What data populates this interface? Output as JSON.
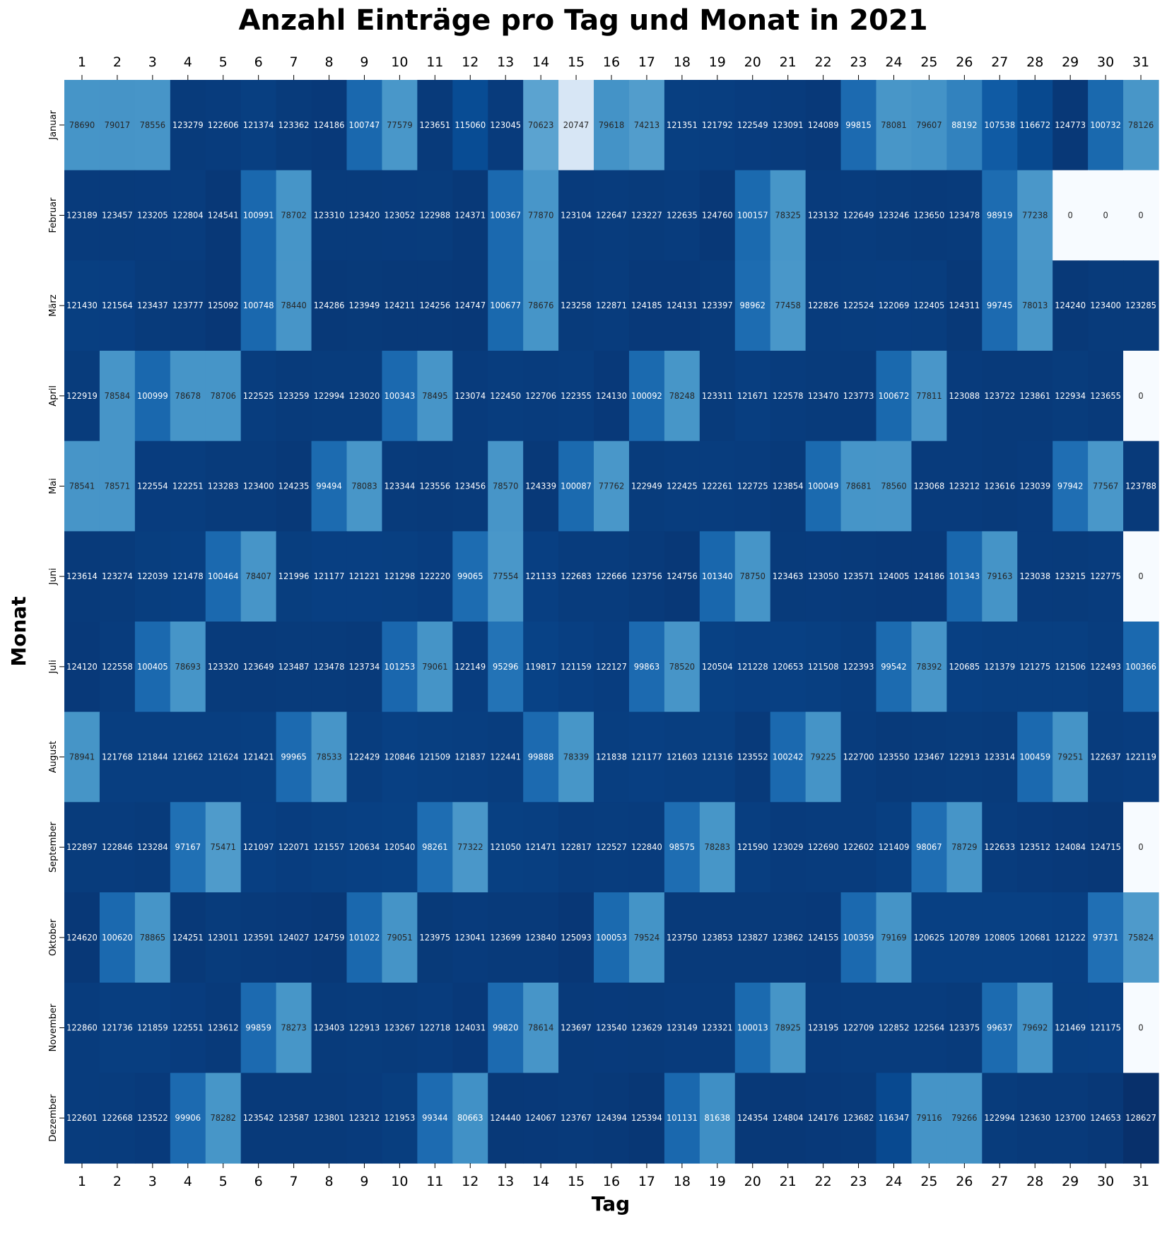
{
  "chart_data": {
    "type": "heatmap",
    "title": "Anzahl Einträge pro Tag und Monat in 2021",
    "xlabel": "Tag",
    "ylabel": "Monat",
    "colormap": "Blues",
    "value_range": [
      0,
      128627
    ],
    "x_ticks_top": true,
    "x_ticks_bottom": true,
    "x": [
      "1",
      "2",
      "3",
      "4",
      "5",
      "6",
      "7",
      "8",
      "9",
      "10",
      "11",
      "12",
      "13",
      "14",
      "15",
      "16",
      "17",
      "18",
      "19",
      "20",
      "21",
      "22",
      "23",
      "24",
      "25",
      "26",
      "27",
      "28",
      "29",
      "30",
      "31"
    ],
    "y": [
      "Januar",
      "Februar",
      "März",
      "April",
      "Mai",
      "Juni",
      "Juli",
      "August",
      "September",
      "Oktober",
      "November",
      "Dezember"
    ],
    "values": [
      [
        78690,
        79017,
        78556,
        123279,
        122606,
        121374,
        123362,
        124186,
        100747,
        77579,
        123651,
        115060,
        123045,
        70623,
        20747,
        79618,
        74213,
        121351,
        121792,
        122549,
        123091,
        124089,
        99815,
        78081,
        79607,
        88192,
        107538,
        116672,
        124773,
        100732,
        78126
      ],
      [
        123189,
        123457,
        123205,
        122804,
        124541,
        100991,
        78702,
        123310,
        123420,
        123052,
        122988,
        124371,
        100367,
        77870,
        123104,
        122647,
        123227,
        122635,
        124760,
        100157,
        78325,
        123132,
        122649,
        123246,
        123650,
        123478,
        98919,
        77238,
        0,
        0,
        0
      ],
      [
        121430,
        121564,
        123437,
        123777,
        125092,
        100748,
        78440,
        124286,
        123949,
        124211,
        124256,
        124747,
        100677,
        78676,
        123258,
        122871,
        124185,
        124131,
        123397,
        98962,
        77458,
        122826,
        122524,
        122069,
        122405,
        124311,
        99745,
        78013,
        124240,
        123400,
        123285
      ],
      [
        122919,
        78584,
        100999,
        78678,
        78706,
        122525,
        123259,
        122994,
        123020,
        100343,
        78495,
        123074,
        122450,
        122706,
        122355,
        124130,
        100092,
        78248,
        123311,
        121671,
        122578,
        123470,
        123773,
        100672,
        77811,
        123088,
        123722,
        123861,
        122934,
        123655,
        0
      ],
      [
        78541,
        78571,
        122554,
        122251,
        123283,
        123400,
        124235,
        99494,
        78083,
        123344,
        123556,
        123456,
        78570,
        124339,
        100087,
        77762,
        122949,
        122425,
        122261,
        122725,
        123854,
        100049,
        78681,
        78560,
        123068,
        123212,
        123616,
        123039,
        97942,
        77567,
        123788
      ],
      [
        123614,
        123274,
        122039,
        121478,
        100464,
        78407,
        121996,
        121177,
        121221,
        121298,
        122220,
        99065,
        77554,
        121133,
        122683,
        122666,
        123756,
        124756,
        101340,
        78750,
        123463,
        123050,
        123571,
        124005,
        124186,
        101343,
        79163,
        123038,
        123215,
        122775,
        0
      ],
      [
        124120,
        122558,
        100405,
        78693,
        123320,
        123649,
        123487,
        123478,
        123734,
        101253,
        79061,
        122149,
        95296,
        119817,
        121159,
        122127,
        99863,
        78520,
        120504,
        121228,
        120653,
        121508,
        122393,
        99542,
        78392,
        120685,
        121379,
        121275,
        121506,
        122493,
        100366
      ],
      [
        78941,
        121768,
        121844,
        121662,
        121624,
        121421,
        99965,
        78533,
        122429,
        120846,
        121509,
        121837,
        122441,
        99888,
        78339,
        121838,
        121177,
        121603,
        121316,
        123552,
        100242,
        79225,
        122700,
        123550,
        123467,
        122913,
        123314,
        100459,
        79251,
        122637,
        122119
      ],
      [
        122897,
        122846,
        123284,
        97167,
        75471,
        121097,
        122071,
        121557,
        120634,
        120540,
        98261,
        77322,
        121050,
        121471,
        122817,
        122527,
        122840,
        98575,
        78283,
        121590,
        123029,
        122690,
        122602,
        121409,
        98067,
        78729,
        122633,
        123512,
        124084,
        124715,
        0
      ],
      [
        124620,
        100620,
        78865,
        124251,
        123011,
        123591,
        124027,
        124759,
        101022,
        79051,
        123975,
        123041,
        123699,
        123840,
        125093,
        100053,
        79524,
        123750,
        123853,
        123827,
        123862,
        124155,
        100359,
        79169,
        120625,
        120789,
        120805,
        120681,
        121222,
        97371,
        75824
      ],
      [
        122860,
        121736,
        121859,
        122551,
        123612,
        99859,
        78273,
        123403,
        122913,
        123267,
        122718,
        124031,
        99820,
        78614,
        123697,
        123540,
        123629,
        123149,
        123321,
        100013,
        78925,
        123195,
        122709,
        122852,
        122564,
        123375,
        99637,
        79692,
        121469,
        121175,
        0
      ],
      [
        122601,
        122668,
        123522,
        99906,
        78282,
        123542,
        123587,
        123801,
        123212,
        121953,
        99344,
        80663,
        124440,
        124067,
        123767,
        124394,
        125394,
        101131,
        81638,
        124354,
        124804,
        124176,
        123682,
        116347,
        79116,
        79266,
        122994,
        123630,
        123700,
        124653,
        128627
      ]
    ]
  }
}
